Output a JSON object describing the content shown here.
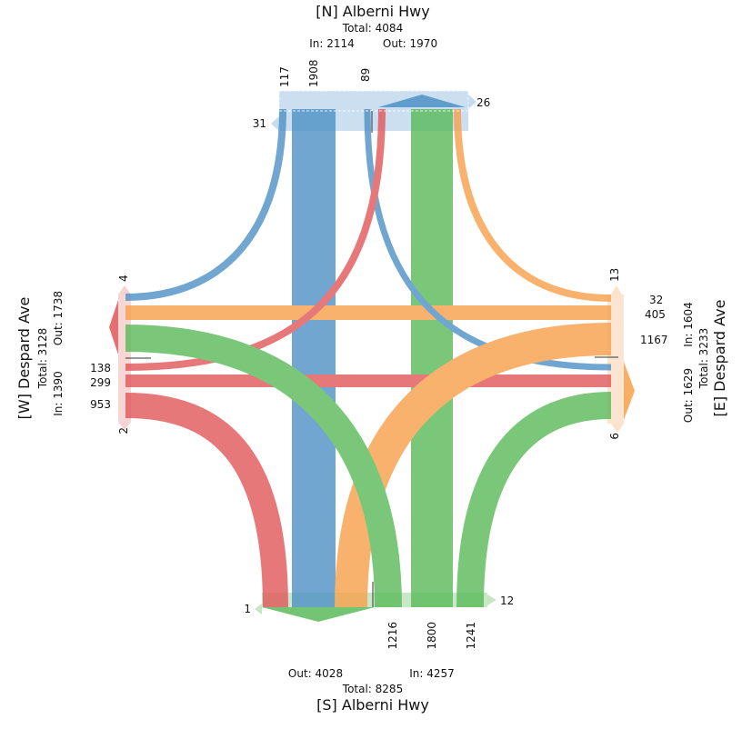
{
  "colors": {
    "red": "#e15759",
    "blue": "#4e91c5",
    "orange": "#f8a04a",
    "green": "#5aba5a",
    "north_bar": "#c5dcf0",
    "south_bar": "#c4e6c2",
    "west_bar": "#f6d3d2",
    "east_bar": "#fbe2cb"
  },
  "north": {
    "title": "[N] Alberni Hwy",
    "total": "Total: 4084",
    "in": "In: 2114",
    "out": "Out: 1970",
    "vol_right": "117",
    "vol_through": "1908",
    "vol_left": "89",
    "u_turn_in": "31",
    "u_turn_out": "26"
  },
  "south": {
    "title": "[S] Alberni Hwy",
    "total": "Total: 8285",
    "in": "In: 4257",
    "out": "Out: 4028",
    "vol_left": "1216",
    "vol_through": "1800",
    "vol_right": "1241",
    "u_turn_in": "1",
    "u_turn_out": "12"
  },
  "west": {
    "title": "[W] Despard Ave",
    "total": "Total: 3128",
    "in": "In: 1390",
    "out": "Out: 1738",
    "vol_left": "138",
    "vol_through": "299",
    "vol_right": "953",
    "u_turn_top": "4",
    "u_turn_bottom": "2"
  },
  "east": {
    "title": "[E] Despard Ave",
    "total": "Total: 3233",
    "in": "In: 1604",
    "out": "Out: 1629",
    "vol_left": "32",
    "vol_through": "405",
    "vol_right": "1167",
    "u_turn_top": "13",
    "u_turn_bottom": "6"
  }
}
